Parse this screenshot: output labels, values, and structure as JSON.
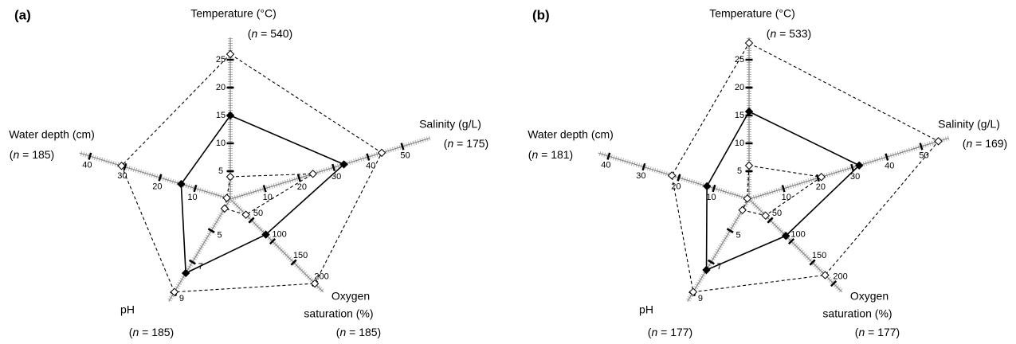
{
  "chart_data": [
    {
      "type": "radar",
      "panel_label": "(a)",
      "axes": [
        {
          "label": [
            "Temperature (°C)"
          ],
          "n_label": "(n = 540)",
          "range": [
            0,
            29
          ],
          "ticks": [
            5,
            10,
            15,
            20,
            25
          ]
        },
        {
          "label": [
            "Salinity (g/L)"
          ],
          "n_label": "(n = 175)",
          "range": [
            0,
            58
          ],
          "ticks": [
            10,
            20,
            30,
            40,
            50
          ]
        },
        {
          "label": [
            "Oxygen",
            "saturation (%)"
          ],
          "n_label": "(n = 185)",
          "range": [
            0,
            220
          ],
          "ticks": [
            50,
            100,
            150,
            200
          ]
        },
        {
          "label": [
            "pH"
          ],
          "n_label": "(n = 185)",
          "range": [
            3,
            9.5
          ],
          "ticks": [
            5,
            7,
            9
          ]
        },
        {
          "label": [
            "Water depth (cm)"
          ],
          "n_label": "(n = 185)",
          "range": [
            0,
            43
          ],
          "ticks": [
            10,
            20,
            30,
            40
          ]
        }
      ],
      "series": [
        {
          "color": "#000000",
          "line": "dashed",
          "marker": "open",
          "values": [
            26,
            44,
            200,
            8.9,
            31
          ]
        },
        {
          "color": "#000000",
          "line": "solid",
          "marker": "filled",
          "values": [
            15,
            33,
            84,
            7.7,
            14
          ]
        },
        {
          "color": "#000000",
          "line": "dashed",
          "marker": "open",
          "values": [
            4,
            24,
            37,
            3.6,
            1
          ]
        }
      ]
    },
    {
      "type": "radar",
      "panel_label": "(b)",
      "axes": [
        {
          "label": [
            "Temperature (°C)"
          ],
          "n_label": "(n = 533)",
          "range": [
            0,
            29
          ],
          "ticks": [
            5,
            10,
            15,
            20,
            25
          ]
        },
        {
          "label": [
            "Salinity (g/L)"
          ],
          "n_label": "(n = 169)",
          "range": [
            0,
            58
          ],
          "ticks": [
            10,
            20,
            30,
            40,
            50
          ]
        },
        {
          "label": [
            "Oxygen",
            "saturation (%)"
          ],
          "n_label": "(n = 177)",
          "range": [
            0,
            220
          ],
          "ticks": [
            50,
            100,
            150,
            200
          ]
        },
        {
          "label": [
            "pH"
          ],
          "n_label": "(n = 177)",
          "range": [
            3,
            9.5
          ],
          "ticks": [
            5,
            7,
            9
          ]
        },
        {
          "label": [
            "Water depth (cm)"
          ],
          "n_label": "(n = 181)",
          "range": [
            0,
            43
          ],
          "ticks": [
            10,
            20,
            30,
            40
          ]
        }
      ],
      "series": [
        {
          "color": "#000000",
          "line": "dashed",
          "marker": "open",
          "values": [
            28,
            55,
            180,
            8.9,
            22
          ]
        },
        {
          "color": "#000000",
          "line": "solid",
          "marker": "filled",
          "values": [
            15.7,
            32,
            87,
            7.5,
            12
          ]
        },
        {
          "color": "#000000",
          "line": "dashed",
          "marker": "open",
          "values": [
            6,
            21,
            39,
            3.7,
            0.5
          ]
        }
      ]
    }
  ]
}
